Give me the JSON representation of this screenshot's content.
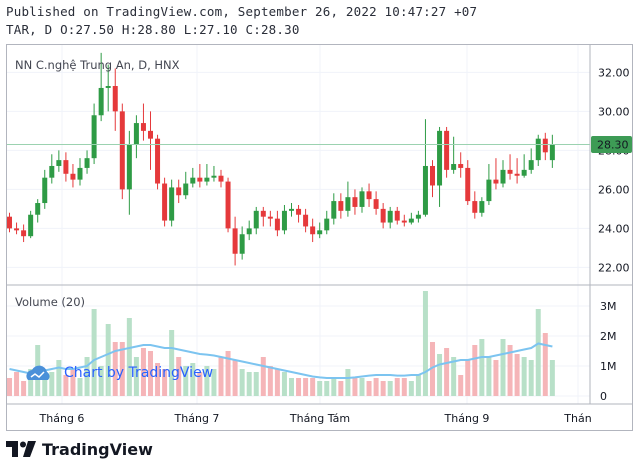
{
  "header": {
    "published": "Published on TradingView.com, September 26, 2022 10:47:27 +07",
    "ohlc": "TAR, D O:27.50 H:28.80 L:27.10 C:28.30"
  },
  "chart": {
    "title": "NN C.nghệ Trung An, D, HNX",
    "volume_title": "Volume (20)",
    "watermark": "Chart by TradingView",
    "last_price_label": "28.30",
    "logo_text": "TradingView"
  },
  "colors": {
    "up": "#26a69a",
    "up_body": "#2e9b45",
    "down": "#ef5350",
    "down_body": "#e5393b",
    "vol_up": "#b8e0c8",
    "vol_down": "#f5b5b8",
    "ma": "#7cc4f0",
    "last_line": "#9bd2b0",
    "last_bg": "#3d9b55"
  },
  "chart_data": {
    "type": "candlestick",
    "price_ticks": [
      "32.00",
      "30.00",
      "28.00",
      "26.00",
      "24.00",
      "22.00"
    ],
    "volume_ticks": [
      "3M",
      "2M",
      "1M",
      "0"
    ],
    "x_ticks": [
      "Tháng 6",
      "Tháng 7",
      "Tháng Tám",
      "Tháng 9",
      "Thán"
    ],
    "price_range": [
      21.2,
      33.3
    ],
    "volume_range": [
      0,
      3.6
    ],
    "last_price": 28.3,
    "candles": [
      [
        24.6,
        24.0,
        24.8,
        23.8,
        0.6
      ],
      [
        24.0,
        23.9,
        24.3,
        23.7,
        0.8
      ],
      [
        23.9,
        23.6,
        24.2,
        23.3,
        0.5
      ],
      [
        23.6,
        24.7,
        24.9,
        23.5,
        0.9
      ],
      [
        24.7,
        25.3,
        25.5,
        24.3,
        1.7
      ],
      [
        25.3,
        26.6,
        27.0,
        25.0,
        0.7
      ],
      [
        26.6,
        27.2,
        27.8,
        26.3,
        0.8
      ],
      [
        27.2,
        27.5,
        28.0,
        26.9,
        1.2
      ],
      [
        27.5,
        26.8,
        27.9,
        26.4,
        0.7
      ],
      [
        26.8,
        26.5,
        27.3,
        26.1,
        0.9
      ],
      [
        26.5,
        27.1,
        27.6,
        26.2,
        0.6
      ],
      [
        27.1,
        27.6,
        28.0,
        26.8,
        1.3
      ],
      [
        27.6,
        29.8,
        30.4,
        27.3,
        2.9
      ],
      [
        29.8,
        31.2,
        33.0,
        29.5,
        1.0
      ],
      [
        31.2,
        31.3,
        32.4,
        30.0,
        2.4
      ],
      [
        31.3,
        30.0,
        32.2,
        29.0,
        1.8
      ],
      [
        30.0,
        26.0,
        30.4,
        25.5,
        1.8
      ],
      [
        26.0,
        28.3,
        29.0,
        24.7,
        2.6
      ],
      [
        28.3,
        29.4,
        29.8,
        27.6,
        1.3
      ],
      [
        29.4,
        29.0,
        30.4,
        28.5,
        1.6
      ],
      [
        29.0,
        28.6,
        30.0,
        27.0,
        1.5
      ],
      [
        28.6,
        26.3,
        28.8,
        26.0,
        1.1
      ],
      [
        26.3,
        24.4,
        26.6,
        24.1,
        0.9
      ],
      [
        24.4,
        26.1,
        26.5,
        24.1,
        2.2
      ],
      [
        26.1,
        25.7,
        26.5,
        25.3,
        1.3
      ],
      [
        25.7,
        26.3,
        26.9,
        25.5,
        1.0
      ],
      [
        26.3,
        26.6,
        27.1,
        26.1,
        1.1
      ],
      [
        26.6,
        26.4,
        27.3,
        26.1,
        0.8
      ],
      [
        26.4,
        26.6,
        27.3,
        26.2,
        1.0
      ],
      [
        26.6,
        26.7,
        27.2,
        26.4,
        0.9
      ],
      [
        26.7,
        26.4,
        27.0,
        26.1,
        1.3
      ],
      [
        26.4,
        24.0,
        26.6,
        23.8,
        1.5
      ],
      [
        24.0,
        22.7,
        24.6,
        22.1,
        1.2
      ],
      [
        22.7,
        23.7,
        24.1,
        22.4,
        0.9
      ],
      [
        23.7,
        24.0,
        24.4,
        23.4,
        0.8
      ],
      [
        24.0,
        24.9,
        25.1,
        23.7,
        0.8
      ],
      [
        24.9,
        24.6,
        25.1,
        24.1,
        1.3
      ],
      [
        24.6,
        24.5,
        24.9,
        24.1,
        1.0
      ],
      [
        24.5,
        23.9,
        24.9,
        23.6,
        0.9
      ],
      [
        23.9,
        24.9,
        25.2,
        23.7,
        0.8
      ],
      [
        24.9,
        25.0,
        25.3,
        24.6,
        0.6
      ],
      [
        25.0,
        24.7,
        25.2,
        24.3,
        0.6
      ],
      [
        24.7,
        24.1,
        25.0,
        23.8,
        0.6
      ],
      [
        24.1,
        23.7,
        24.5,
        23.3,
        0.6
      ],
      [
        23.7,
        23.9,
        24.3,
        23.5,
        0.5
      ],
      [
        23.9,
        24.5,
        24.9,
        23.7,
        0.5
      ],
      [
        24.5,
        25.4,
        25.8,
        24.2,
        0.6
      ],
      [
        25.4,
        24.9,
        25.8,
        24.5,
        0.5
      ],
      [
        24.9,
        25.6,
        26.4,
        24.6,
        0.9
      ],
      [
        25.6,
        25.1,
        26.0,
        24.7,
        0.6
      ],
      [
        25.1,
        25.9,
        26.1,
        24.8,
        0.6
      ],
      [
        25.9,
        25.5,
        26.3,
        25.1,
        0.5
      ],
      [
        25.5,
        25.0,
        25.9,
        24.7,
        0.6
      ],
      [
        25.0,
        24.3,
        25.3,
        24.0,
        0.5
      ],
      [
        24.3,
        24.9,
        25.1,
        24.0,
        0.5
      ],
      [
        24.9,
        24.4,
        25.1,
        24.2,
        0.6
      ],
      [
        24.4,
        24.3,
        24.7,
        24.1,
        0.6
      ],
      [
        24.3,
        24.5,
        24.8,
        24.2,
        0.5
      ],
      [
        24.5,
        24.7,
        24.9,
        24.3,
        0.7
      ],
      [
        24.7,
        27.2,
        29.6,
        24.6,
        3.5
      ],
      [
        27.2,
        26.2,
        27.5,
        25.6,
        1.8
      ],
      [
        26.2,
        29.0,
        29.2,
        25.1,
        1.4
      ],
      [
        29.0,
        27.0,
        29.2,
        26.6,
        1.6
      ],
      [
        27.0,
        27.3,
        28.7,
        26.8,
        1.3
      ],
      [
        27.3,
        27.1,
        27.9,
        26.6,
        0.7
      ],
      [
        27.1,
        25.4,
        27.5,
        25.2,
        1.2
      ],
      [
        25.4,
        24.8,
        25.9,
        24.5,
        1.7
      ],
      [
        24.8,
        25.4,
        25.6,
        24.6,
        1.9
      ],
      [
        25.4,
        26.5,
        27.3,
        25.2,
        1.3
      ],
      [
        26.5,
        26.3,
        27.6,
        26.0,
        1.2
      ],
      [
        26.3,
        27.0,
        27.5,
        26.1,
        1.9
      ],
      [
        27.0,
        26.8,
        27.8,
        26.5,
        1.7
      ],
      [
        26.8,
        26.7,
        27.6,
        26.3,
        1.4
      ],
      [
        26.7,
        27.0,
        27.8,
        26.6,
        1.3
      ],
      [
        27.0,
        27.5,
        28.1,
        26.8,
        1.2
      ],
      [
        27.5,
        28.6,
        28.8,
        27.2,
        2.9
      ],
      [
        28.6,
        27.9,
        28.9,
        27.5,
        2.1
      ],
      [
        27.5,
        28.3,
        28.8,
        27.1,
        1.2
      ]
    ],
    "ma20": [
      0.9,
      0.85,
      0.8,
      0.75,
      0.8,
      0.85,
      0.9,
      0.95,
      0.9,
      0.9,
      0.95,
      1.0,
      1.2,
      1.3,
      1.4,
      1.5,
      1.55,
      1.6,
      1.65,
      1.7,
      1.7,
      1.65,
      1.6,
      1.6,
      1.55,
      1.5,
      1.45,
      1.4,
      1.38,
      1.35,
      1.3,
      1.25,
      1.2,
      1.15,
      1.1,
      1.05,
      1.0,
      0.95,
      0.9,
      0.85,
      0.8,
      0.75,
      0.7,
      0.65,
      0.62,
      0.6,
      0.6,
      0.6,
      0.6,
      0.62,
      0.65,
      0.68,
      0.7,
      0.7,
      0.7,
      0.68,
      0.68,
      0.7,
      0.7,
      0.8,
      0.95,
      1.05,
      1.1,
      1.15,
      1.2,
      1.2,
      1.25,
      1.3,
      1.3,
      1.35,
      1.4,
      1.45,
      1.5,
      1.55,
      1.6,
      1.75,
      1.7,
      1.65
    ]
  }
}
